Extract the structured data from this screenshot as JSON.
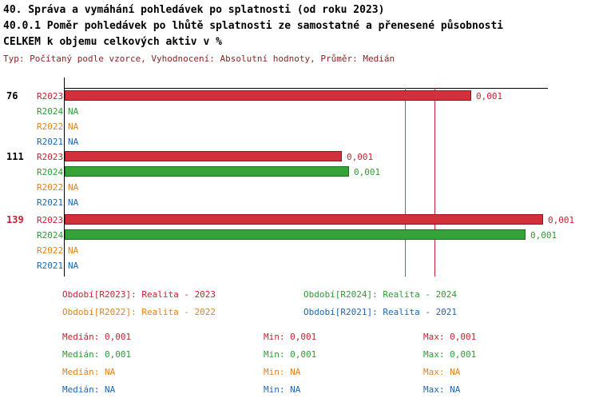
{
  "header": {
    "title_line1": "40. Správa a vymáhání pohledávek po splatnosti (od roku 2023)",
    "title_line2": "40.0.1 Poměr pohledávek po lhůtě splatnosti ze samostatné a přenesené působnosti",
    "title_line3": "CELKEM k objemu celkových aktiv v %",
    "meta": "Typ: Počítaný podle vzorce, Vyhodnocení: Absolutní hodnoty, Průměr: Medián"
  },
  "colors": {
    "r2023": "#c42430",
    "r2024": "#2e9b34",
    "r2022": "#e08224",
    "r2021": "#1c66b1",
    "meta_text": "#8b2323",
    "highlighted_group_label": "#c42430",
    "axis": "#000000"
  },
  "chart_data": {
    "type": "bar",
    "orientation": "horizontal",
    "value_unit": "%",
    "series_periods": [
      "R2023",
      "R2024",
      "R2022",
      "R2021"
    ],
    "groups": [
      {
        "label": "76",
        "rows": [
          {
            "period": "R2023",
            "value": "0,001",
            "len": 0.841
          },
          {
            "period": "R2024",
            "value": "NA"
          },
          {
            "period": "R2022",
            "value": "NA"
          },
          {
            "period": "R2021",
            "value": "NA"
          }
        ]
      },
      {
        "label": "111",
        "rows": [
          {
            "period": "R2023",
            "value": "0,001",
            "len": 0.574
          },
          {
            "period": "R2024",
            "value": "0,001",
            "len": 0.588
          },
          {
            "period": "R2022",
            "value": "NA"
          },
          {
            "period": "R2021",
            "value": "NA"
          }
        ]
      },
      {
        "label": "139",
        "highlighted": true,
        "rows": [
          {
            "period": "R2023",
            "value": "0,001",
            "len": 0.99
          },
          {
            "period": "R2024",
            "value": "0,001",
            "len": 0.954
          },
          {
            "period": "R2022",
            "value": "NA"
          },
          {
            "period": "R2021",
            "value": "NA"
          }
        ]
      }
    ],
    "reference_lines": [
      {
        "name": "median-line-green",
        "pos": 0.706
      },
      {
        "name": "median-line-red",
        "pos": 0.767
      }
    ]
  },
  "legend": {
    "items": [
      {
        "text": "Období[R2023]: Realita - 2023"
      },
      {
        "text": "Období[R2024]: Realita - 2024"
      },
      {
        "text": "Období[R2022]: Realita - 2022"
      },
      {
        "text": "Období[R2021]: Realita - 2021"
      }
    ]
  },
  "stats": {
    "rows": [
      {
        "median": "Medián: 0,001",
        "min": "Min: 0,001",
        "max": "Max: 0,001"
      },
      {
        "median": "Medián: 0,001",
        "min": "Min: 0,001",
        "max": "Max: 0,001"
      },
      {
        "median": "Medián: NA",
        "min": "Min: NA",
        "max": "Max: NA"
      },
      {
        "median": "Medián: NA",
        "min": "Min: NA",
        "max": "Max: NA"
      }
    ]
  }
}
